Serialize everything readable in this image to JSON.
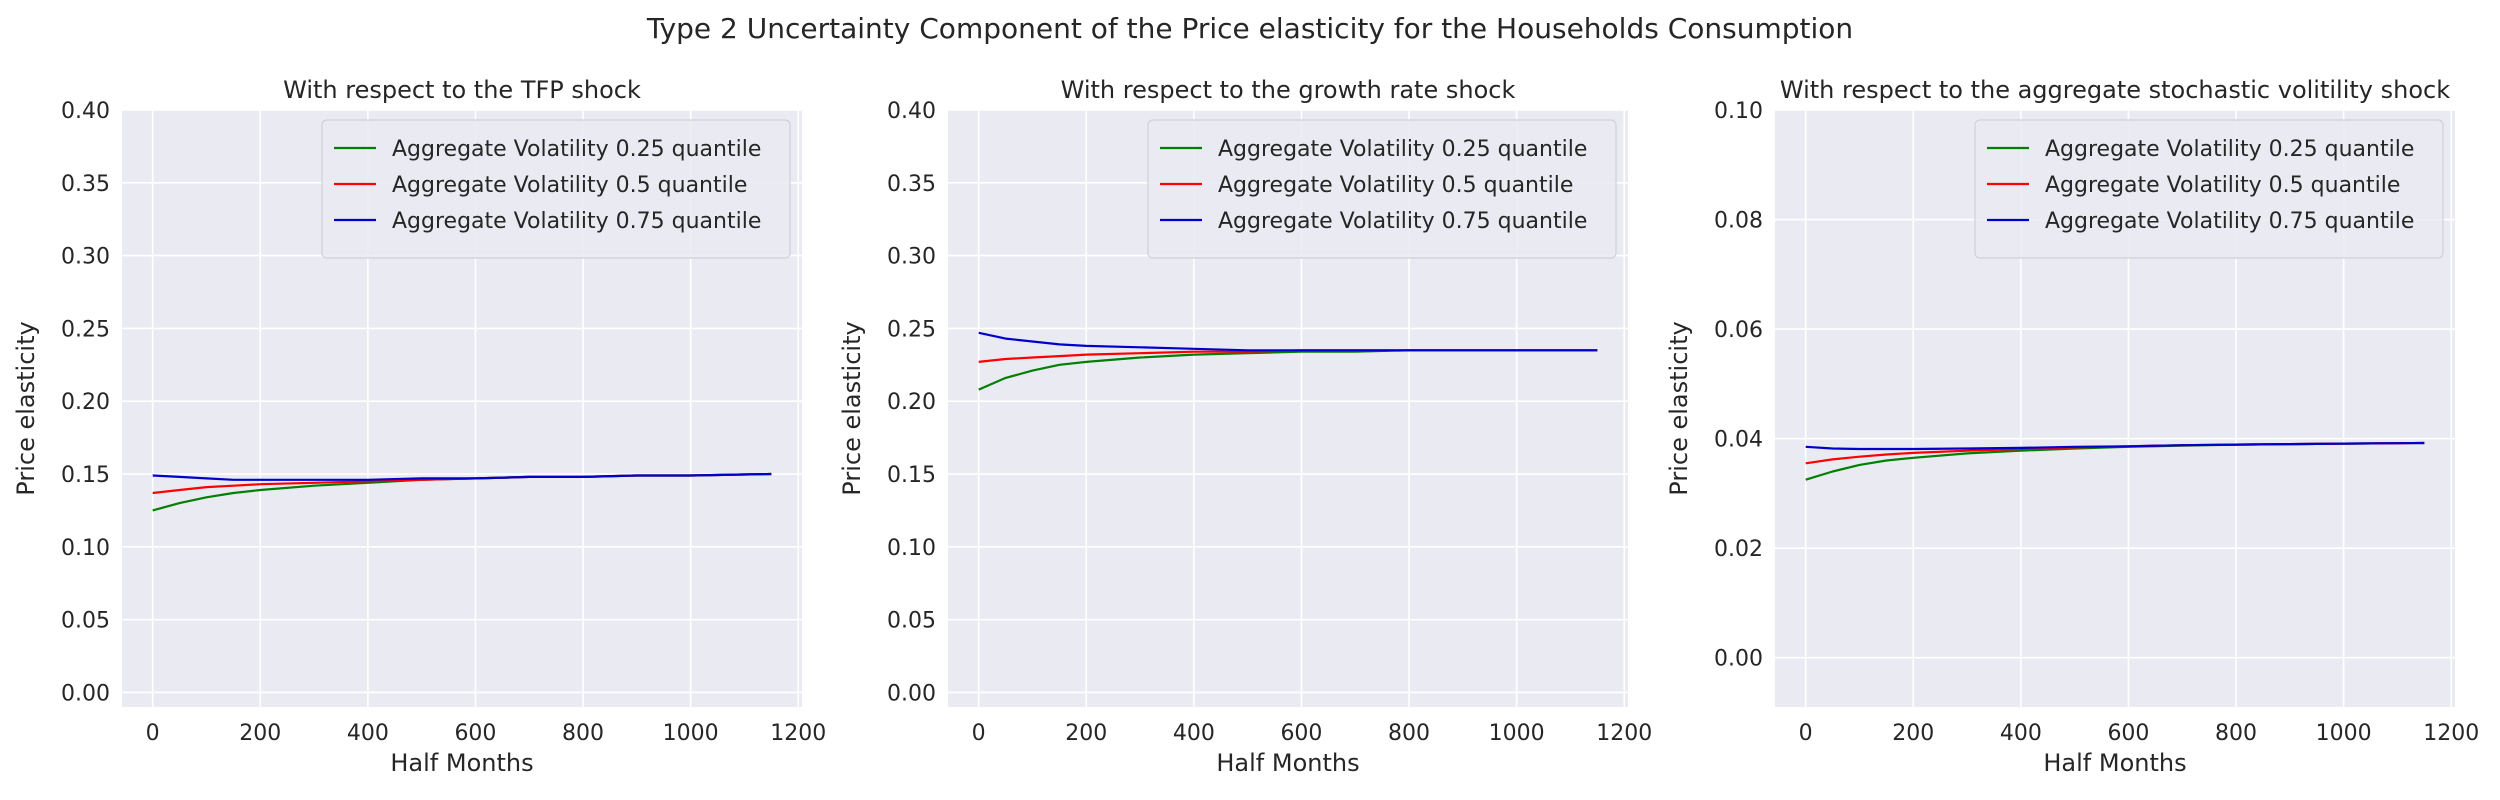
{
  "figure": {
    "title": "Type 2 Uncertainty Component of the Price elasticity for the Households Consumption"
  },
  "colors": {
    "panel_bg": "#EAEAF2",
    "grid": "#FFFFFF",
    "text": "#262626"
  },
  "chart_data": [
    {
      "type": "line",
      "title": "With respect to the TFP shock",
      "xlabel": "Half Months",
      "ylabel": "Price elasticity",
      "xlim": [
        -57,
        1207
      ],
      "ylim": [
        -0.01,
        0.4
      ],
      "xticks": [
        0,
        200,
        400,
        600,
        800,
        1000,
        1200
      ],
      "yticks": [
        0.0,
        0.05,
        0.1,
        0.15,
        0.2,
        0.25,
        0.3,
        0.35,
        0.4
      ],
      "ytick_decimals": 2,
      "grid": true,
      "legend_position": "top-right",
      "x": [
        0,
        50,
        100,
        150,
        200,
        300,
        400,
        500,
        600,
        700,
        800,
        900,
        1000,
        1150
      ],
      "series": [
        {
          "name": "Aggregate Volatility 0.25 quantile",
          "color": "#008000",
          "values": [
            0.125,
            0.13,
            0.134,
            0.137,
            0.139,
            0.142,
            0.144,
            0.146,
            0.147,
            0.148,
            0.148,
            0.149,
            0.149,
            0.15
          ]
        },
        {
          "name": "Aggregate Volatility 0.5 quantile",
          "color": "#FF0000",
          "values": [
            0.137,
            0.139,
            0.141,
            0.142,
            0.143,
            0.144,
            0.145,
            0.146,
            0.147,
            0.148,
            0.148,
            0.149,
            0.149,
            0.15
          ]
        },
        {
          "name": "Aggregate Volatility 0.75 quantile",
          "color": "#0000CD",
          "values": [
            0.149,
            0.148,
            0.147,
            0.146,
            0.146,
            0.146,
            0.146,
            0.147,
            0.147,
            0.148,
            0.148,
            0.149,
            0.149,
            0.15
          ]
        }
      ]
    },
    {
      "type": "line",
      "title": "With respect to the growth rate shock",
      "xlabel": "Half Months",
      "ylabel": "Price elasticity",
      "xlim": [
        -57,
        1207
      ],
      "ylim": [
        -0.01,
        0.4
      ],
      "xticks": [
        0,
        200,
        400,
        600,
        800,
        1000,
        1200
      ],
      "yticks": [
        0.0,
        0.05,
        0.1,
        0.15,
        0.2,
        0.25,
        0.3,
        0.35,
        0.4
      ],
      "ytick_decimals": 2,
      "grid": true,
      "legend_position": "top-right",
      "x": [
        0,
        50,
        100,
        150,
        200,
        300,
        400,
        500,
        600,
        700,
        800,
        900,
        1000,
        1150
      ],
      "series": [
        {
          "name": "Aggregate Volatility 0.25 quantile",
          "color": "#008000",
          "values": [
            0.208,
            0.216,
            0.221,
            0.225,
            0.227,
            0.23,
            0.232,
            0.233,
            0.234,
            0.234,
            0.235,
            0.235,
            0.235,
            0.235
          ]
        },
        {
          "name": "Aggregate Volatility 0.5 quantile",
          "color": "#FF0000",
          "values": [
            0.227,
            0.229,
            0.23,
            0.231,
            0.232,
            0.233,
            0.234,
            0.234,
            0.235,
            0.235,
            0.235,
            0.235,
            0.235,
            0.235
          ]
        },
        {
          "name": "Aggregate Volatility 0.75 quantile",
          "color": "#0000CD",
          "values": [
            0.247,
            0.243,
            0.241,
            0.239,
            0.238,
            0.237,
            0.236,
            0.235,
            0.235,
            0.235,
            0.235,
            0.235,
            0.235,
            0.235
          ]
        }
      ]
    },
    {
      "type": "line",
      "title": "With respect to the aggregate stochastic volitility shock",
      "xlabel": "Half Months",
      "ylabel": "Price elasticity",
      "xlim": [
        -57,
        1207
      ],
      "ylim": [
        -0.009,
        0.1
      ],
      "xticks": [
        0,
        200,
        400,
        600,
        800,
        1000,
        1200
      ],
      "yticks": [
        0.0,
        0.02,
        0.04,
        0.06,
        0.08,
        0.1
      ],
      "ytick_decimals": 2,
      "grid": true,
      "legend_position": "top-right",
      "x": [
        0,
        50,
        100,
        150,
        200,
        300,
        400,
        500,
        600,
        700,
        800,
        900,
        1000,
        1150
      ],
      "series": [
        {
          "name": "Aggregate Volatility 0.25 quantile",
          "color": "#008000",
          "values": [
            0.0325,
            0.034,
            0.0352,
            0.036,
            0.0365,
            0.0373,
            0.0378,
            0.0382,
            0.0385,
            0.0387,
            0.0389,
            0.039,
            0.0391,
            0.0392
          ]
        },
        {
          "name": "Aggregate Volatility 0.5 quantile",
          "color": "#FF0000",
          "values": [
            0.0355,
            0.0362,
            0.0367,
            0.0371,
            0.0374,
            0.0378,
            0.0381,
            0.0384,
            0.0386,
            0.0388,
            0.0389,
            0.039,
            0.0391,
            0.0392
          ]
        },
        {
          "name": "Aggregate Volatility 0.75 quantile",
          "color": "#0000CD",
          "values": [
            0.0385,
            0.0382,
            0.0381,
            0.0381,
            0.0381,
            0.0382,
            0.0383,
            0.0385,
            0.0386,
            0.0388,
            0.0389,
            0.039,
            0.0391,
            0.0392
          ]
        }
      ]
    }
  ]
}
